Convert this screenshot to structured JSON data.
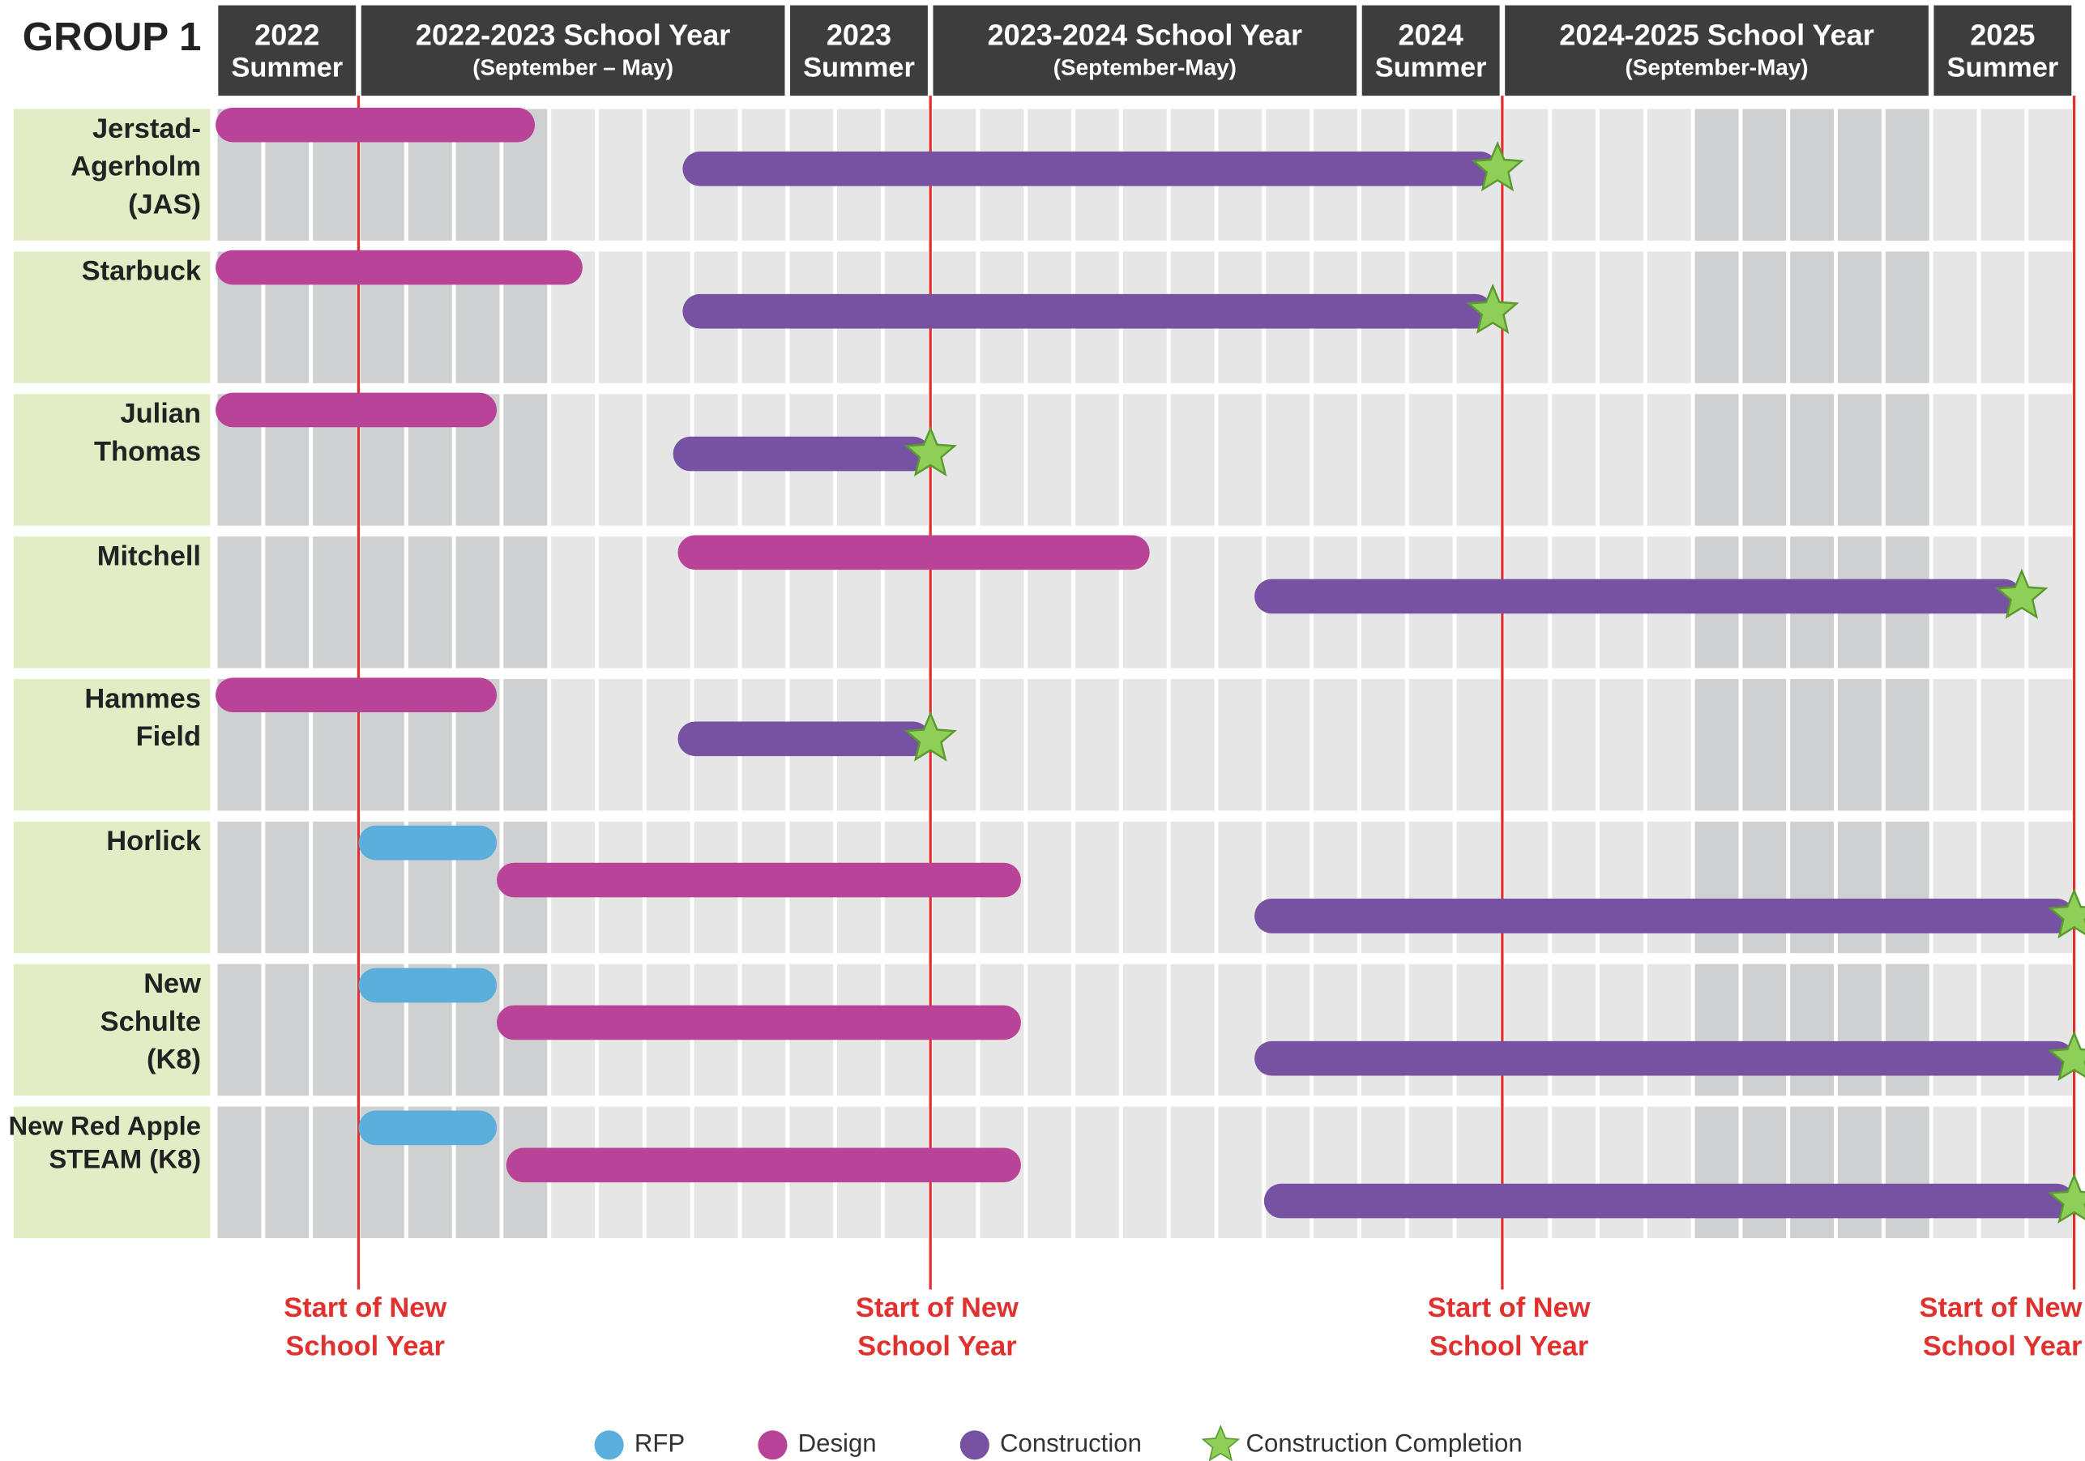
{
  "chart_data": {
    "type": "gantt",
    "title": "GROUP 1",
    "xlim": [
      0,
      39
    ],
    "xticks": [
      0,
      3,
      12,
      15,
      24,
      27,
      36,
      39
    ],
    "periods": [
      [
        "2022",
        "Summer"
      ],
      [
        "2022-2023 School Year",
        "(September – May)"
      ],
      [
        "2023",
        "Summer"
      ],
      [
        "2023-2024 School Year",
        "(September-May)"
      ],
      [
        "2024",
        "Summer"
      ],
      [
        "2024-2025 School Year",
        "(September-May)"
      ],
      [
        "2025",
        "Summer"
      ]
    ],
    "categories": [
      [
        "Jerstad-",
        "Agerholm",
        "(JAS)"
      ],
      [
        "Starbuck"
      ],
      [
        "Julian",
        "Thomas"
      ],
      [
        "Mitchell"
      ],
      [
        "Hammes",
        "Field"
      ],
      [
        "Horlick"
      ],
      [
        "New",
        "Schulte",
        "(K8)"
      ],
      [
        "New Red Apple",
        "STEAM (K8)"
      ]
    ],
    "series": [
      {
        "name": "RFP",
        "color": "#5aafdc",
        "values": [
          null,
          null,
          null,
          null,
          null,
          [
            3.0,
            5.9
          ],
          [
            3.0,
            5.9
          ],
          [
            3.0,
            5.9
          ]
        ]
      },
      {
        "name": "Design",
        "color": "#b94397",
        "values": [
          [
            0,
            6.7
          ],
          [
            0,
            7.7
          ],
          [
            0,
            5.9
          ],
          [
            9.7,
            19.6
          ],
          [
            0,
            5.9
          ],
          [
            5.9,
            16.9
          ],
          [
            5.9,
            16.9
          ],
          [
            6.1,
            16.9
          ]
        ]
      },
      {
        "name": "Construction",
        "color": "#7752a3",
        "values": [
          [
            9.8,
            26.9
          ],
          [
            9.8,
            26.8
          ],
          [
            9.6,
            15.0
          ],
          [
            21.8,
            37.9
          ],
          [
            9.7,
            15.0
          ],
          [
            21.8,
            39
          ],
          [
            21.8,
            39
          ],
          [
            22.0,
            39
          ]
        ]
      }
    ],
    "completion": {
      "name": "Construction Completion",
      "color": "#8dcf57"
    },
    "markers": [
      {
        "x": 3,
        "label": [
          "Start of New",
          "School Year"
        ]
      },
      {
        "x": 15,
        "label": [
          "Start of New",
          "School Year"
        ]
      },
      {
        "x": 27,
        "label": [
          "Start of New",
          "School Year"
        ]
      },
      {
        "x": 39,
        "label": [
          "Start of New",
          "School Year"
        ]
      }
    ],
    "marker_color": "#e0312e"
  }
}
